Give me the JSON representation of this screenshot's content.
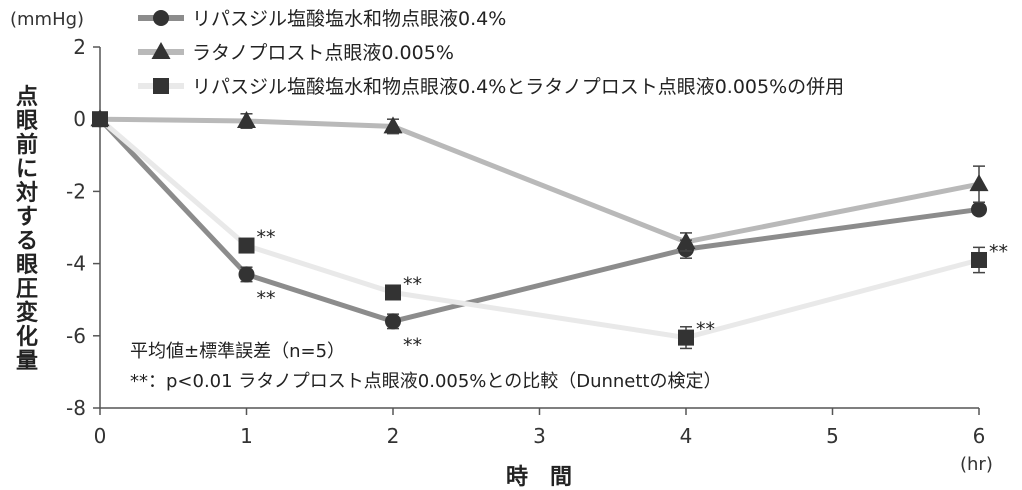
{
  "chart_data": {
    "type": "line",
    "y_unit": "(mmHg)",
    "x_unit": "(hr)",
    "xlabel": "時　間",
    "ylabel": "点眼前に対する眼圧変化量",
    "xlim": [
      0,
      6
    ],
    "ylim": [
      -8,
      2
    ],
    "x_ticks": [
      0,
      1,
      2,
      3,
      4,
      5,
      6
    ],
    "y_ticks": [
      2,
      0,
      -2,
      -4,
      -6,
      -8
    ],
    "legend_position": "top-left",
    "series": [
      {
        "name": "リパスジル塩酸塩水和物点眼液0.4%",
        "marker": "circle",
        "color": "#8c8c8c",
        "points": [
          {
            "x": 0,
            "y": 0,
            "err": 0
          },
          {
            "x": 1,
            "y": -4.3,
            "err": 0.2,
            "sig": "**"
          },
          {
            "x": 2,
            "y": -5.6,
            "err": 0.2,
            "sig": "**"
          },
          {
            "x": 4,
            "y": -3.6,
            "err": 0.25
          },
          {
            "x": 6,
            "y": -2.5,
            "err": 0
          }
        ]
      },
      {
        "name": "ラタノプロスト点眼液0.005%",
        "marker": "triangle",
        "color": "#b9b9b9",
        "points": [
          {
            "x": 0,
            "y": 0,
            "err": 0
          },
          {
            "x": 1,
            "y": -0.05,
            "err": 0.2
          },
          {
            "x": 2,
            "y": -0.2,
            "err": 0.2
          },
          {
            "x": 4,
            "y": -3.4,
            "err": 0.25
          },
          {
            "x": 6,
            "y": -1.8,
            "err": 0.5
          }
        ]
      },
      {
        "name": "リパスジル塩酸塩水和物点眼液0.4%とラタノプロスト点眼液0.005%の併用",
        "marker": "square",
        "color": "#e9e9e9",
        "points": [
          {
            "x": 0,
            "y": 0,
            "err": 0
          },
          {
            "x": 1,
            "y": -3.5,
            "err": 0.15,
            "sig": "**"
          },
          {
            "x": 2,
            "y": -4.8,
            "err": 0.15,
            "sig": "**"
          },
          {
            "x": 4,
            "y": -6.05,
            "err": 0.3,
            "sig": "**"
          },
          {
            "x": 6,
            "y": -3.9,
            "err": 0.35,
            "sig": "**"
          }
        ]
      }
    ],
    "notes": [
      "平均値±標準誤差（n=5）",
      "**：p<0.01 ラタノプロスト点眼液0.005%との比較（Dunnettの検定）"
    ],
    "colors": {
      "marker_fill": "#333333",
      "axis": "#555555"
    }
  }
}
